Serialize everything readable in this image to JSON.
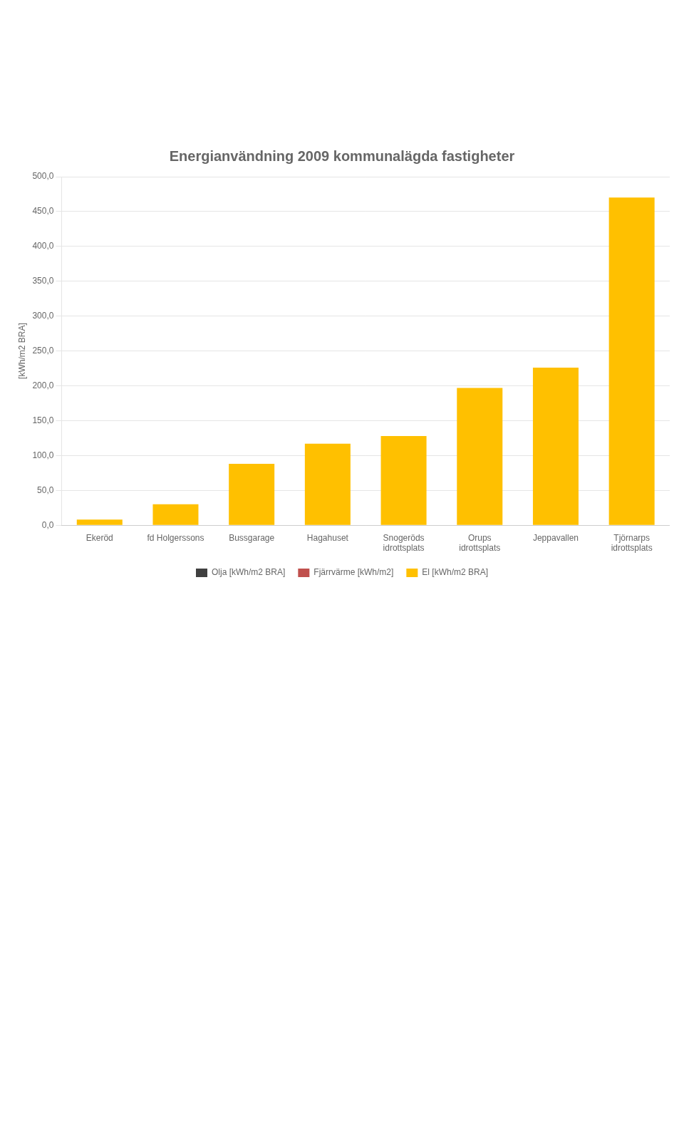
{
  "chart_data": {
    "type": "bar",
    "title": "Energianvändning 2009 kommunalägda fastigheter",
    "ylabel": "[kWh/m2 BRA]",
    "categories": [
      "Ekeröd",
      "fd Holgerssons",
      "Bussgarage",
      "Hagahuset",
      "Snogeröds\nidrottsplats",
      "Orups\nidrottsplats",
      "Jeppavallen",
      "Tjörnarps\nidrottsplats"
    ],
    "series": [
      {
        "name": "Olja [kWh/m2 BRA]",
        "color": "#404040",
        "values": [
          null,
          null,
          null,
          null,
          null,
          null,
          null,
          null
        ]
      },
      {
        "name": "Fjärrvärme [kWh/m2]",
        "color": "#C0504D",
        "values": [
          null,
          null,
          null,
          null,
          null,
          null,
          null,
          null
        ]
      },
      {
        "name": "El [kWh/m2 BRA]",
        "color": "#FFC000",
        "values": [
          8.0,
          30.0,
          88.0,
          117.0,
          128.0,
          197.0,
          226.0,
          470.0
        ]
      }
    ],
    "ylim": [
      0,
      500
    ],
    "yticks": [
      {
        "value": 0,
        "label": "0,0"
      },
      {
        "value": 50,
        "label": "50,0"
      },
      {
        "value": 100,
        "label": "100,0"
      },
      {
        "value": 150,
        "label": "150,0"
      },
      {
        "value": 200,
        "label": "200,0"
      },
      {
        "value": 250,
        "label": "250,0"
      },
      {
        "value": 300,
        "label": "300,0"
      },
      {
        "value": 350,
        "label": "350,0"
      },
      {
        "value": 400,
        "label": "400,0"
      },
      {
        "value": 450,
        "label": "450,0"
      },
      {
        "value": 500,
        "label": "500,0"
      }
    ],
    "grid": true,
    "legend": "bottom"
  }
}
